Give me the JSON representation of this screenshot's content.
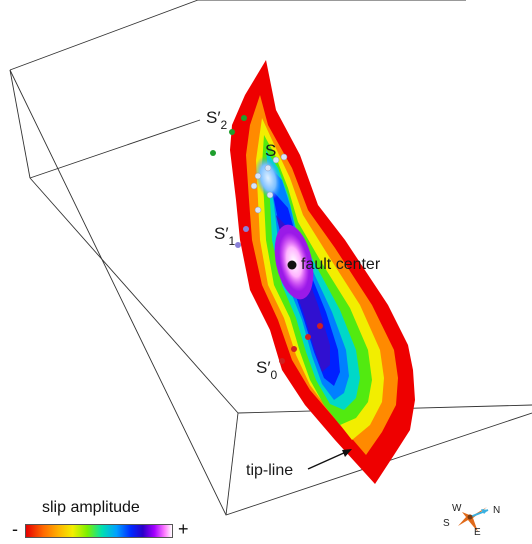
{
  "labels": {
    "s2_prime": {
      "main": "S′",
      "sub": "2"
    },
    "s": {
      "main": "S"
    },
    "s1_prime": {
      "main": "S′",
      "sub": "1"
    },
    "fault_center": "fault center",
    "s0_prime": {
      "main": "S′",
      "sub": "0"
    },
    "tip_line": "tip-line"
  },
  "legend": {
    "title": "slip amplitude",
    "min_symbol": "-",
    "max_symbol": "+"
  },
  "compass": {
    "north": "N",
    "south": "S",
    "east": "E",
    "west": "W"
  },
  "colors": {
    "slip_max": "#ffffff",
    "slip_high": "#ff66ff",
    "slip_mid": "#0033ff",
    "slip_low": "#ffff00",
    "slip_min": "#ff0000",
    "box_edge": "#333333"
  }
}
